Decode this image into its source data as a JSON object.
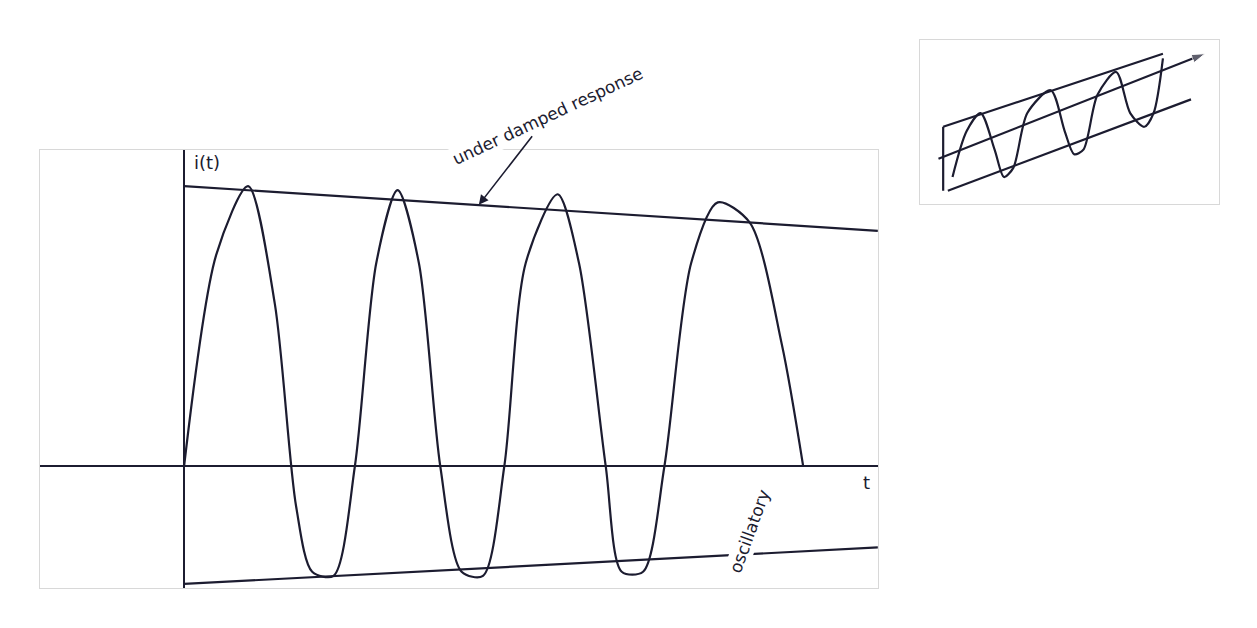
{
  "chart_data": [
    {
      "type": "line",
      "xlabel": "t",
      "ylabel": "i(t)",
      "xlim": [
        -1.35,
        6.5
      ],
      "ylim": [
        -1.5,
        3.9
      ],
      "tick_labels": false,
      "grid": false,
      "color": "#1c1c30",
      "series": [
        {
          "x": [
            0,
            0.3,
            0.6,
            0.85,
            1.05,
            1.2,
            1.4,
            1.6,
            1.8,
            2.0,
            2.2,
            2.4,
            2.6,
            2.8,
            3.0,
            3.2,
            3.5,
            3.7,
            3.95,
            4.1,
            4.3,
            4.5,
            4.75,
            5.0,
            5.3,
            5.6,
            5.8
          ],
          "values": [
            0,
            2.6,
            3.45,
            2.0,
            -0.5,
            -1.3,
            -1.35,
            0,
            2.5,
            3.4,
            2.5,
            0,
            -1.3,
            -1.35,
            0,
            2.5,
            3.35,
            2.5,
            0,
            -1.3,
            -1.3,
            0,
            2.5,
            3.25,
            3.0,
            1.5,
            0
          ]
        },
        {
          "x": [
            0,
            6.5
          ],
          "values": [
            3.45,
            2.9
          ]
        },
        {
          "x": [
            0,
            6.5
          ],
          "values": [
            -1.45,
            -1.0
          ]
        }
      ],
      "annotations": [
        {
          "text": "under damped response",
          "x": 2.75,
          "y": 3.2
        },
        {
          "text": "oscillatory",
          "x": 5.3,
          "y": -0.8
        }
      ]
    },
    {
      "type": "line",
      "xlim": [
        0,
        3.2
      ],
      "ylim": [
        -0.1,
        1.7
      ],
      "tick_labels": false,
      "grid": false,
      "color": "#1c1c30",
      "series": [
        {
          "x": [
            0.25,
            2.6
          ],
          "values": [
            0.75,
            1.55
          ]
        },
        {
          "x": [
            0.3,
            2.9
          ],
          "values": [
            0.05,
            1.05
          ]
        },
        {
          "x": [
            0.25,
            0.25
          ],
          "values": [
            0.05,
            0.75
          ]
        },
        {
          "x": [
            0.35,
            0.5,
            0.65,
            0.8,
            0.9,
            1.0,
            1.15,
            1.4,
            1.55,
            1.65,
            1.75,
            1.9,
            2.1,
            2.25,
            2.4,
            2.5,
            2.6
          ],
          "values": [
            0.2,
            0.7,
            0.9,
            0.5,
            0.2,
            0.3,
            0.9,
            1.15,
            0.7,
            0.45,
            0.5,
            1.1,
            1.35,
            0.9,
            0.75,
            0.9,
            1.5
          ]
        },
        {
          "x": [
            0.2,
            3.05
          ],
          "values": [
            0.4,
            1.55
          ],
          "marker": "arrow"
        }
      ]
    }
  ]
}
